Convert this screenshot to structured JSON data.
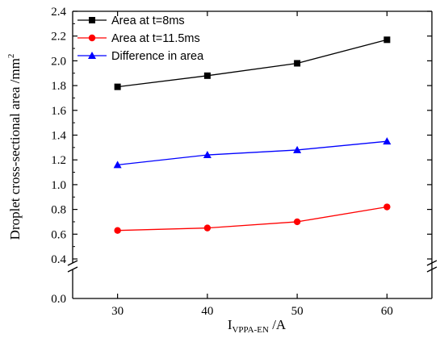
{
  "chart_data": {
    "type": "line",
    "x": [
      30,
      40,
      50,
      60
    ],
    "xlabel": {
      "main": "I",
      "sub": "VPPA-EN",
      "unit": " /A"
    },
    "ylabel": {
      "main": "Droplet cross-sectional area /mm",
      "sup": "2"
    },
    "xlim": [
      25,
      65
    ],
    "x_ticks": [
      "30",
      "40",
      "50",
      "60"
    ],
    "y_ticks_lower": [
      "0.0"
    ],
    "y_ticks_upper": [
      "0.4",
      "0.6",
      "0.8",
      "1.0",
      "1.2",
      "1.4",
      "1.6",
      "1.8",
      "2.0",
      "2.2",
      "2.4"
    ],
    "ylim_lower": [
      0.0,
      0.12
    ],
    "ylim_upper": [
      0.4,
      2.4
    ],
    "axis_break": true,
    "grid": false,
    "legend_position": "top-left",
    "series": [
      {
        "name": "Area at t=8ms",
        "color": "#000000",
        "marker": "square",
        "values": [
          1.79,
          1.88,
          1.98,
          2.17
        ]
      },
      {
        "name": "Area at t=11.5ms",
        "color": "#ff0000",
        "marker": "circle",
        "values": [
          0.63,
          0.65,
          0.7,
          0.82
        ]
      },
      {
        "name": "Difference in area",
        "color": "#0000ff",
        "marker": "triangle",
        "values": [
          1.16,
          1.24,
          1.28,
          1.35
        ]
      }
    ]
  }
}
